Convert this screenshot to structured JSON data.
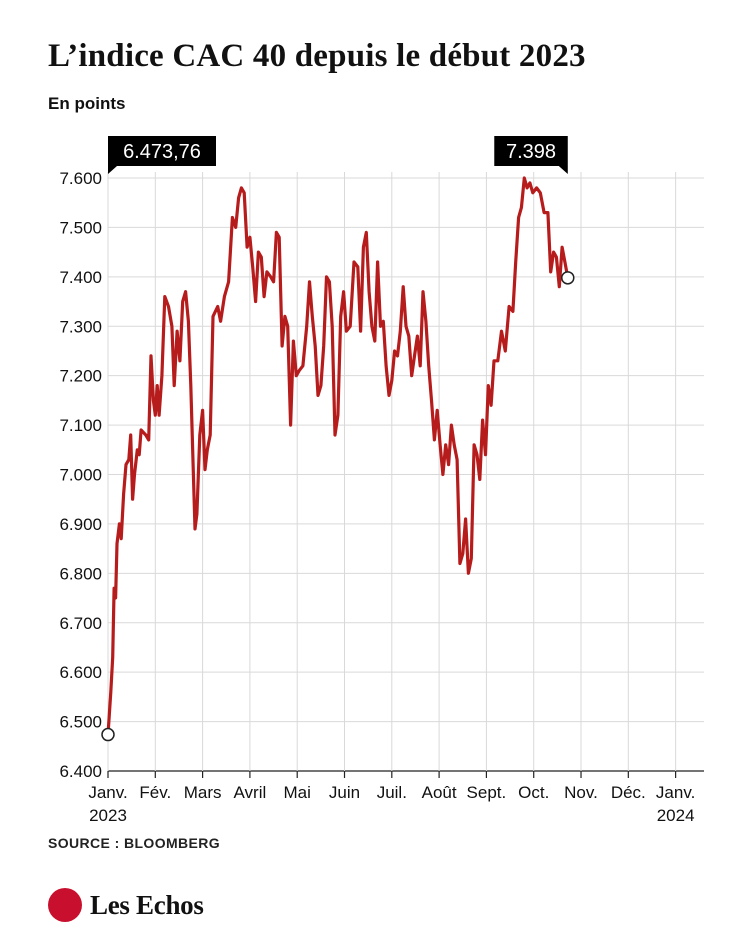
{
  "header": {
    "title": "L’indice CAC 40 depuis le début 2023",
    "subtitle": "En points"
  },
  "footer": {
    "source": "SOURCE : BLOOMBERG",
    "brand": "Les Echos"
  },
  "colors": {
    "line": "#b71c1c",
    "grid": "#d9d9d9",
    "axis": "#222222",
    "callout_bg": "#000000",
    "callout_text": "#ffffff"
  },
  "chart_data": {
    "type": "line",
    "title": "L’indice CAC 40 depuis le début 2023",
    "ylabel": "En points",
    "ylim": [
      6400,
      7600
    ],
    "grid": true,
    "yticks": [
      6400,
      6500,
      6600,
      6700,
      6800,
      6900,
      7000,
      7100,
      7200,
      7300,
      7400,
      7500,
      7600
    ],
    "ytick_labels": [
      "6.400",
      "6.500",
      "6.600",
      "6.700",
      "6.800",
      "6.900",
      "7.000",
      "7.100",
      "7.200",
      "7.300",
      "7.400",
      "7.500",
      "7.600"
    ],
    "xticks": [
      {
        "label": "Janv.",
        "sub": "2023",
        "month": 0
      },
      {
        "label": "Fév.",
        "sub": "",
        "month": 1
      },
      {
        "label": "Mars",
        "sub": "",
        "month": 2
      },
      {
        "label": "Avril",
        "sub": "",
        "month": 3
      },
      {
        "label": "Mai",
        "sub": "",
        "month": 4
      },
      {
        "label": "Juin",
        "sub": "",
        "month": 5
      },
      {
        "label": "Juil.",
        "sub": "",
        "month": 6
      },
      {
        "label": "Août",
        "sub": "",
        "month": 7
      },
      {
        "label": "Sept.",
        "sub": "",
        "month": 8
      },
      {
        "label": "Oct.",
        "sub": "",
        "month": 9
      },
      {
        "label": "Nov.",
        "sub": "",
        "month": 10
      },
      {
        "label": "Déc.",
        "sub": "",
        "month": 11
      },
      {
        "label": "Janv.",
        "sub": "2024",
        "month": 12
      }
    ],
    "xlim": [
      0,
      12.6
    ],
    "series": [
      {
        "points": [
          [
            0.0,
            6473.76
          ],
          [
            0.06,
            6560
          ],
          [
            0.1,
            6630
          ],
          [
            0.13,
            6770
          ],
          [
            0.16,
            6750
          ],
          [
            0.19,
            6860
          ],
          [
            0.24,
            6900
          ],
          [
            0.28,
            6870
          ],
          [
            0.33,
            6960
          ],
          [
            0.38,
            7020
          ],
          [
            0.44,
            7030
          ],
          [
            0.48,
            7080
          ],
          [
            0.52,
            6950
          ],
          [
            0.56,
            7000
          ],
          [
            0.62,
            7050
          ],
          [
            0.66,
            7040
          ],
          [
            0.7,
            7090
          ],
          [
            0.8,
            7080
          ],
          [
            0.86,
            7070
          ],
          [
            0.91,
            7240
          ],
          [
            0.96,
            7150
          ],
          [
            1.0,
            7120
          ],
          [
            1.04,
            7180
          ],
          [
            1.08,
            7120
          ],
          [
            1.14,
            7200
          ],
          [
            1.2,
            7360
          ],
          [
            1.28,
            7340
          ],
          [
            1.35,
            7300
          ],
          [
            1.4,
            7180
          ],
          [
            1.46,
            7290
          ],
          [
            1.52,
            7230
          ],
          [
            1.58,
            7350
          ],
          [
            1.64,
            7370
          ],
          [
            1.7,
            7310
          ],
          [
            1.75,
            7180
          ],
          [
            1.8,
            7020
          ],
          [
            1.84,
            6890
          ],
          [
            1.88,
            6920
          ],
          [
            1.94,
            7080
          ],
          [
            2.0,
            7130
          ],
          [
            2.05,
            7010
          ],
          [
            2.1,
            7050
          ],
          [
            2.16,
            7080
          ],
          [
            2.22,
            7320
          ],
          [
            2.32,
            7340
          ],
          [
            2.38,
            7310
          ],
          [
            2.46,
            7360
          ],
          [
            2.55,
            7390
          ],
          [
            2.63,
            7520
          ],
          [
            2.7,
            7500
          ],
          [
            2.76,
            7560
          ],
          [
            2.82,
            7580
          ],
          [
            2.88,
            7570
          ],
          [
            2.94,
            7460
          ],
          [
            3.0,
            7480
          ],
          [
            3.06,
            7420
          ],
          [
            3.12,
            7350
          ],
          [
            3.18,
            7450
          ],
          [
            3.24,
            7440
          ],
          [
            3.3,
            7360
          ],
          [
            3.36,
            7410
          ],
          [
            3.44,
            7400
          ],
          [
            3.5,
            7390
          ],
          [
            3.56,
            7490
          ],
          [
            3.62,
            7480
          ],
          [
            3.68,
            7260
          ],
          [
            3.74,
            7320
          ],
          [
            3.8,
            7300
          ],
          [
            3.86,
            7100
          ],
          [
            3.92,
            7270
          ],
          [
            3.98,
            7200
          ],
          [
            4.04,
            7210
          ],
          [
            4.12,
            7220
          ],
          [
            4.2,
            7300
          ],
          [
            4.26,
            7390
          ],
          [
            4.32,
            7320
          ],
          [
            4.38,
            7260
          ],
          [
            4.44,
            7160
          ],
          [
            4.5,
            7180
          ],
          [
            4.56,
            7260
          ],
          [
            4.62,
            7400
          ],
          [
            4.68,
            7390
          ],
          [
            4.74,
            7300
          ],
          [
            4.8,
            7080
          ],
          [
            4.86,
            7120
          ],
          [
            4.92,
            7320
          ],
          [
            4.98,
            7370
          ],
          [
            5.04,
            7290
          ],
          [
            5.12,
            7300
          ],
          [
            5.2,
            7430
          ],
          [
            5.28,
            7420
          ],
          [
            5.34,
            7290
          ],
          [
            5.4,
            7460
          ],
          [
            5.46,
            7490
          ],
          [
            5.52,
            7370
          ],
          [
            5.58,
            7300
          ],
          [
            5.64,
            7270
          ],
          [
            5.7,
            7430
          ],
          [
            5.76,
            7300
          ],
          [
            5.82,
            7310
          ],
          [
            5.88,
            7220
          ],
          [
            5.94,
            7160
          ],
          [
            6.0,
            7190
          ],
          [
            6.06,
            7250
          ],
          [
            6.12,
            7240
          ],
          [
            6.18,
            7290
          ],
          [
            6.24,
            7380
          ],
          [
            6.3,
            7300
          ],
          [
            6.36,
            7280
          ],
          [
            6.42,
            7200
          ],
          [
            6.48,
            7240
          ],
          [
            6.54,
            7280
          ],
          [
            6.6,
            7220
          ],
          [
            6.66,
            7370
          ],
          [
            6.72,
            7310
          ],
          [
            6.78,
            7220
          ],
          [
            6.84,
            7150
          ],
          [
            6.9,
            7070
          ],
          [
            6.96,
            7130
          ],
          [
            7.02,
            7060
          ],
          [
            7.08,
            7000
          ],
          [
            7.14,
            7060
          ],
          [
            7.2,
            7020
          ],
          [
            7.26,
            7100
          ],
          [
            7.32,
            7060
          ],
          [
            7.38,
            7030
          ],
          [
            7.44,
            6820
          ],
          [
            7.5,
            6840
          ],
          [
            7.56,
            6910
          ],
          [
            7.62,
            6800
          ],
          [
            7.68,
            6830
          ],
          [
            7.74,
            7060
          ],
          [
            7.8,
            7040
          ],
          [
            7.86,
            6990
          ],
          [
            7.92,
            7110
          ],
          [
            7.98,
            7040
          ],
          [
            8.04,
            7180
          ],
          [
            8.1,
            7140
          ],
          [
            8.16,
            7230
          ],
          [
            8.24,
            7230
          ],
          [
            8.32,
            7290
          ],
          [
            8.4,
            7250
          ],
          [
            8.48,
            7340
          ],
          [
            8.56,
            7330
          ],
          [
            8.62,
            7430
          ],
          [
            8.68,
            7520
          ],
          [
            8.74,
            7540
          ],
          [
            8.8,
            7600
          ],
          [
            8.86,
            7580
          ],
          [
            8.92,
            7590
          ],
          [
            8.98,
            7570
          ],
          [
            9.06,
            7580
          ],
          [
            9.14,
            7570
          ],
          [
            9.22,
            7530
          ],
          [
            9.3,
            7530
          ],
          [
            9.36,
            7410
          ],
          [
            9.42,
            7450
          ],
          [
            9.48,
            7440
          ],
          [
            9.54,
            7380
          ],
          [
            9.6,
            7460
          ],
          [
            9.66,
            7430
          ],
          [
            9.72,
            7398
          ]
        ]
      }
    ],
    "annotations": [
      {
        "label": "6.473,76",
        "at": "start"
      },
      {
        "label": "7.398",
        "at": "end"
      }
    ]
  }
}
